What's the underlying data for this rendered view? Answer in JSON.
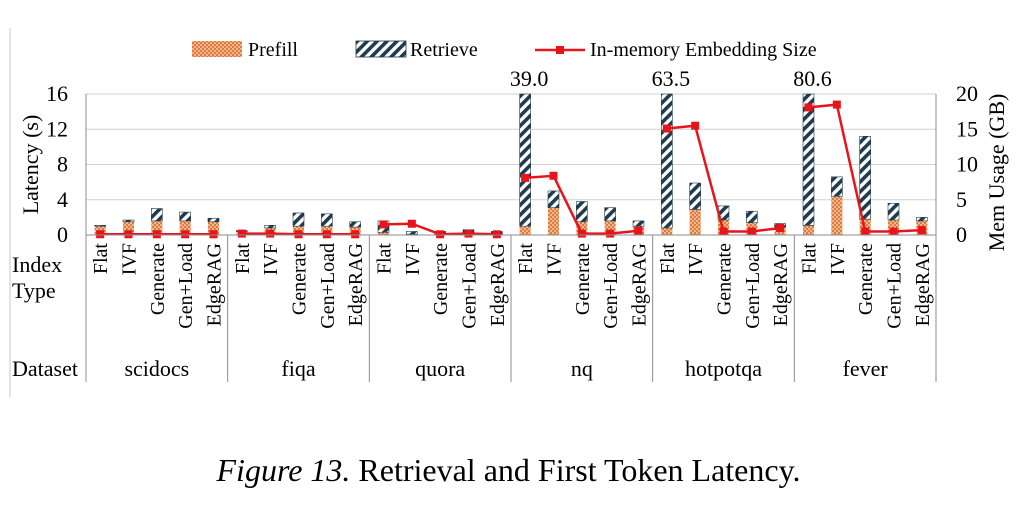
{
  "chart_data": {
    "type": "bar",
    "title": "",
    "legend": {
      "placement": "top",
      "entries": [
        "Prefill",
        "Retrieve",
        "In-memory Embedding Size"
      ]
    },
    "ylabel_left": "Latency (s)",
    "ylabel_right": "Mem Usage (GB)",
    "ylim_left": [
      0,
      16
    ],
    "yticks_left": [
      "0",
      "4",
      "8",
      "12",
      "16"
    ],
    "ylim_right": [
      0,
      20
    ],
    "yticks_right": [
      "0",
      "5",
      "10",
      "15",
      "20"
    ],
    "row_label_index": "Index",
    "row_label_type": "Type",
    "row_label_dataset": "Dataset",
    "index_types": [
      "Flat",
      "IVF",
      "Generate",
      "Gen+Load",
      "EdgeRAG"
    ],
    "datasets": [
      {
        "name": "scidocs",
        "prefill": [
          1.0,
          1.5,
          1.6,
          1.6,
          1.5
        ],
        "retrieve": [
          0.1,
          0.2,
          1.4,
          1.0,
          0.4
        ],
        "mem": [
          0.1,
          0.1,
          0.1,
          0.1,
          0.1
        ]
      },
      {
        "name": "fiqa",
        "prefill": [
          0.4,
          0.8,
          1.0,
          1.0,
          0.9
        ],
        "retrieve": [
          0.1,
          0.3,
          1.5,
          1.4,
          0.6
        ],
        "mem": [
          0.2,
          0.2,
          0.1,
          0.1,
          0.1
        ]
      },
      {
        "name": "quora",
        "prefill": [
          0.3,
          0.1,
          0.1,
          0.1,
          0.1
        ],
        "retrieve": [
          1.3,
          0.3,
          0.3,
          0.5,
          0.3
        ],
        "mem": [
          1.5,
          1.6,
          0.1,
          0.2,
          0.1
        ]
      },
      {
        "name": "nq",
        "prefill": [
          1.0,
          3.1,
          1.5,
          1.6,
          1.0
        ],
        "retrieve": [
          38.0,
          1.9,
          2.3,
          1.5,
          0.6
        ],
        "mem": [
          8.1,
          8.4,
          0.2,
          0.2,
          0.6
        ]
      },
      {
        "name": "hotpotqa",
        "prefill": [
          0.8,
          2.9,
          1.7,
          1.4,
          0.9
        ],
        "retrieve": [
          62.7,
          3.0,
          1.6,
          1.3,
          0.4
        ],
        "mem": [
          15.1,
          15.5,
          0.5,
          0.5,
          1.0
        ]
      },
      {
        "name": "fever",
        "prefill": [
          1.1,
          4.4,
          1.8,
          1.7,
          1.6
        ],
        "retrieve": [
          79.5,
          2.2,
          9.4,
          1.9,
          0.4
        ],
        "mem": [
          18.1,
          18.5,
          0.5,
          0.5,
          0.7
        ]
      }
    ],
    "overflow_labels": [
      {
        "dataset": "nq",
        "text": "39.0"
      },
      {
        "dataset": "hotpotqa",
        "text": "63.5"
      },
      {
        "dataset": "fever",
        "text": "80.6"
      }
    ]
  },
  "caption": {
    "label": "Figure 13.",
    "text": "Retrieval and First Token Latency."
  },
  "colors": {
    "prefill": "#e07b39",
    "prefill_dot": "#ffffff",
    "retrieve": "#1f3b4d",
    "line": "#e8141b",
    "axis": "#8c8c8c",
    "grid": "#d0d0d0"
  }
}
